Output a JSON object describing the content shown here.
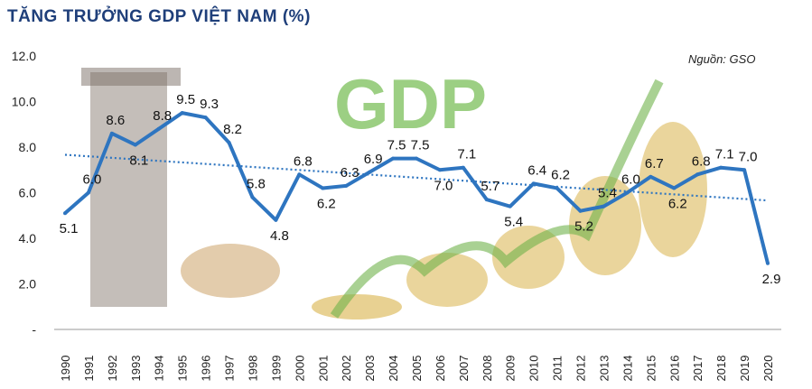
{
  "title": "TĂNG TRƯỞNG GDP VIỆT NAM (%)",
  "source": "Nguồn: GSO",
  "colors": {
    "line": "#2e75c0",
    "trend": "#2e75c0",
    "title": "#1f3f7a",
    "background_gdp_text": "#7cbf5a"
  },
  "background_image_text": "GDP",
  "chart_data": {
    "type": "line",
    "title": "TĂNG TRƯỞNG GDP VIỆT NAM (%)",
    "xlabel": "",
    "ylabel": "",
    "ylim": [
      0,
      12
    ],
    "yticks": [
      "-",
      "2.0",
      "4.0",
      "6.0",
      "8.0",
      "10.0",
      "12.0"
    ],
    "grid": false,
    "trendline": "linear, dotted",
    "categories": [
      "1990",
      "1991",
      "1992",
      "1993",
      "1994",
      "1995",
      "1996",
      "1997",
      "1998",
      "1999",
      "2000",
      "2001",
      "2002",
      "2003",
      "2004",
      "2005",
      "2006",
      "2007",
      "2008",
      "2009",
      "2010",
      "2011",
      "2012",
      "2013",
      "2014",
      "2015",
      "2016",
      "2017",
      "2018",
      "2019",
      "2020"
    ],
    "values": [
      5.1,
      6.0,
      8.6,
      8.1,
      8.8,
      9.5,
      9.3,
      8.2,
      5.8,
      4.8,
      6.8,
      6.2,
      6.3,
      6.9,
      7.5,
      7.5,
      7.0,
      7.1,
      5.7,
      5.4,
      6.4,
      6.2,
      5.2,
      5.4,
      6.0,
      6.7,
      6.2,
      6.8,
      7.1,
      7.0,
      2.9
    ],
    "labels": [
      "5.1",
      "6.0",
      "8.6",
      "8.1",
      "8.8",
      "9.5",
      "9.3",
      "8.2",
      "5.8",
      "4.8",
      "6.8",
      "6.2",
      "6.3",
      "6.9",
      "7.5",
      "7.5",
      "7.0",
      "7.1",
      "5.7",
      "5.4",
      "6.4",
      "6.2",
      "5.2",
      "5.4",
      "6.0",
      "6.7",
      "6.2",
      "6.8",
      "7.1",
      "7.0",
      "2.9"
    ]
  }
}
